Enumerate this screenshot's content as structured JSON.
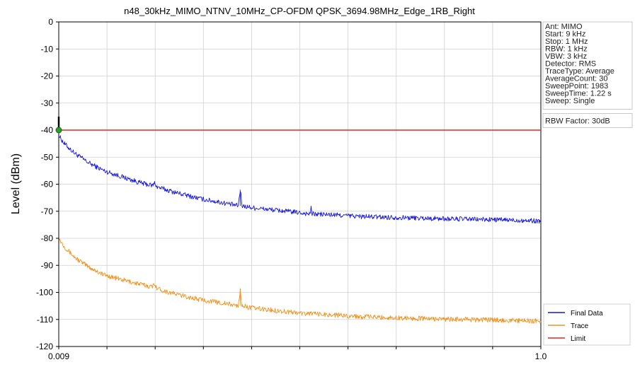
{
  "chart_data": {
    "type": "line",
    "title": "n48_30kHz_MIMO_NTNV_10MHz_CP-OFDM QPSK_3694.98MHz_Edge_1RB_Right",
    "xlabel": "",
    "ylabel": "Level (dBm)",
    "x_scale": "log",
    "x_unit": "MHz",
    "xlim": [
      0.009,
      1.0
    ],
    "ylim": [
      -120,
      0
    ],
    "x_tick_labels": [
      "0.009",
      "1.0"
    ],
    "y_ticks": [
      0,
      -10,
      -20,
      -30,
      -40,
      -50,
      -60,
      -70,
      -80,
      -90,
      -100,
      -110,
      -120
    ],
    "grid": true,
    "legend_position": "bottom-right",
    "info_box": [
      "Ant: MIMO",
      "Start: 9 kHz",
      "Stop: 1 MHz",
      "RBW: 1 kHz",
      "VBW: 3 kHz",
      "Detector: RMS",
      "TraceType: Average",
      "AverageCount: 30",
      "SweepPoint: 1983",
      "SweepTime: 1.22 s",
      "Sweep: Single"
    ],
    "rbw_factor": "RBW Factor: 30dB",
    "series": [
      {
        "name": "Final Data",
        "color": "#1515e0",
        "x": [
          0.009,
          0.0095,
          0.0105,
          0.012,
          0.014,
          0.017,
          0.02,
          0.0225,
          0.023,
          0.0235,
          0.026,
          0.03,
          0.036,
          0.045,
          0.052,
          0.053,
          0.054,
          0.06,
          0.075,
          0.09,
          0.1,
          0.105,
          0.106,
          0.107,
          0.13,
          0.17,
          0.22,
          0.3,
          0.4,
          0.55,
          0.7,
          0.85,
          1.0
        ],
        "y": [
          -42,
          -45,
          -48.5,
          -52,
          -55,
          -57.5,
          -59.5,
          -60.5,
          -59.5,
          -61,
          -62.2,
          -63.7,
          -65.4,
          -66.9,
          -68,
          -62,
          -68,
          -68.7,
          -69.6,
          -70.3,
          -70.8,
          -71,
          -68.7,
          -71,
          -71.3,
          -71.9,
          -72.2,
          -72.5,
          -72.8,
          -73,
          -73.2,
          -73.4,
          -73.6
        ]
      },
      {
        "name": "Trace",
        "color": "#f0921e",
        "x": [
          0.009,
          0.0095,
          0.0105,
          0.012,
          0.014,
          0.017,
          0.02,
          0.0225,
          0.023,
          0.0235,
          0.026,
          0.03,
          0.036,
          0.045,
          0.052,
          0.053,
          0.054,
          0.06,
          0.075,
          0.09,
          0.1,
          0.105,
          0.106,
          0.107,
          0.13,
          0.17,
          0.22,
          0.3,
          0.4,
          0.55,
          0.7,
          0.85,
          1.0
        ],
        "y": [
          -80,
          -83,
          -87,
          -90.5,
          -93.5,
          -95.5,
          -97,
          -98,
          -96.5,
          -98.5,
          -99.8,
          -101.2,
          -102.7,
          -104,
          -105,
          -99,
          -105,
          -105.8,
          -106.7,
          -107.4,
          -107.9,
          -108,
          -106,
          -108,
          -108.3,
          -108.9,
          -109.3,
          -109.6,
          -109.9,
          -110.1,
          -110.3,
          -110.5,
          -110.6
        ]
      },
      {
        "name": "Limit",
        "color": "#ee2222",
        "x": [
          0.009,
          1.0
        ],
        "y": [
          -40,
          -40
        ]
      }
    ]
  }
}
